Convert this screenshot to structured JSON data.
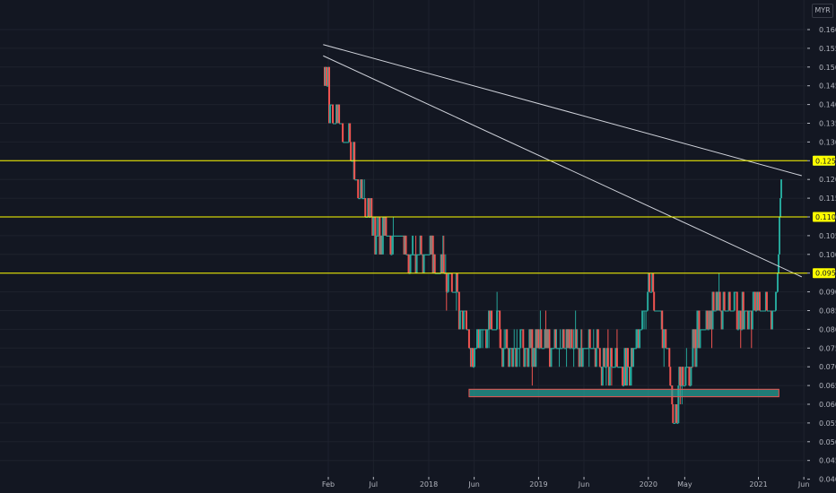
{
  "chart_data": {
    "type": "candlestick",
    "currency": "MYR",
    "y_ticks": [
      "0.160",
      "0.155",
      "0.150",
      "0.145",
      "0.140",
      "0.135",
      "0.130",
      "0.125",
      "0.120",
      "0.115",
      "0.110",
      "0.105",
      "0.100",
      "0.095",
      "0.090",
      "0.085",
      "0.080",
      "0.075",
      "0.070",
      "0.065",
      "0.060",
      "0.055",
      "0.050",
      "0.045",
      "0.040"
    ],
    "x_ticks": [
      {
        "label": "Feb",
        "date": "2017-02"
      },
      {
        "label": "Jul",
        "date": "2017-07"
      },
      {
        "label": "2018",
        "date": "2018-01"
      },
      {
        "label": "Jun",
        "date": "2018-06"
      },
      {
        "label": "2019",
        "date": "2019-01"
      },
      {
        "label": "Jun",
        "date": "2019-06"
      },
      {
        "label": "2020",
        "date": "2020-01"
      },
      {
        "label": "May",
        "date": "2020-05"
      },
      {
        "label": "2021",
        "date": "2021-01"
      },
      {
        "label": "Jun",
        "date": "2021-06"
      }
    ],
    "ylim": [
      0.04,
      0.163
    ],
    "price_path": [
      [
        "2017-01-20",
        0.15
      ],
      [
        "2017-02-10",
        0.138
      ],
      [
        "2017-03-15",
        0.133
      ],
      [
        "2017-04-10",
        0.13
      ],
      [
        "2017-05-05",
        0.12
      ],
      [
        "2017-06-01",
        0.113
      ],
      [
        "2017-06-25",
        0.108
      ],
      [
        "2017-08-01",
        0.106
      ],
      [
        "2017-09-15",
        0.103
      ],
      [
        "2017-11-01",
        0.102
      ],
      [
        "2017-12-15",
        0.1
      ],
      [
        "2018-01-20",
        0.097
      ],
      [
        "2018-03-01",
        0.095
      ],
      [
        "2018-04-01",
        0.09
      ],
      [
        "2018-05-01",
        0.083
      ],
      [
        "2018-05-25",
        0.07
      ],
      [
        "2018-06-15",
        0.078
      ],
      [
        "2018-08-15",
        0.078
      ],
      [
        "2018-10-01",
        0.076
      ],
      [
        "2019-01-01",
        0.075
      ],
      [
        "2019-04-01",
        0.075
      ],
      [
        "2019-07-01",
        0.075
      ],
      [
        "2019-08-15",
        0.07
      ],
      [
        "2019-10-15",
        0.068
      ],
      [
        "2019-12-01",
        0.08
      ],
      [
        "2020-01-05",
        0.09
      ],
      [
        "2020-02-15",
        0.083
      ],
      [
        "2020-03-10",
        0.072
      ],
      [
        "2020-03-25",
        0.055
      ],
      [
        "2020-04-15",
        0.065
      ],
      [
        "2020-05-15",
        0.07
      ],
      [
        "2020-06-20",
        0.08
      ],
      [
        "2020-08-01",
        0.083
      ],
      [
        "2020-09-15",
        0.085
      ],
      [
        "2020-11-01",
        0.082
      ],
      [
        "2020-12-15",
        0.085
      ],
      [
        "2021-01-20",
        0.085
      ],
      [
        "2021-02-25",
        0.086
      ],
      [
        "2021-03-05",
        0.09
      ],
      [
        "2021-03-12",
        0.11
      ],
      [
        "2021-03-20",
        0.125
      ]
    ],
    "last_price": "0.125",
    "horizontal_levels": [
      "0.125",
      "0.110",
      "0.095"
    ],
    "trendlines": [
      {
        "from": [
          "2017-01-15",
          0.156
        ],
        "to": [
          "2021-05-25",
          0.121
        ]
      },
      {
        "from": [
          "2017-01-15",
          0.153
        ],
        "to": [
          "2021-05-25",
          0.094
        ]
      }
    ],
    "support_zone": {
      "from": "2018-05-15",
      "to": "2021-03-10",
      "top": 0.064,
      "bottom": 0.062
    },
    "colors": {
      "up": "#26a69a",
      "down": "#ef5350",
      "level": "#ffff00",
      "trendline": "#d1d4dc",
      "zone": "#26a69a",
      "zone_border": "#ef5350",
      "grid": "#1e222d",
      "background": "#131722"
    }
  }
}
